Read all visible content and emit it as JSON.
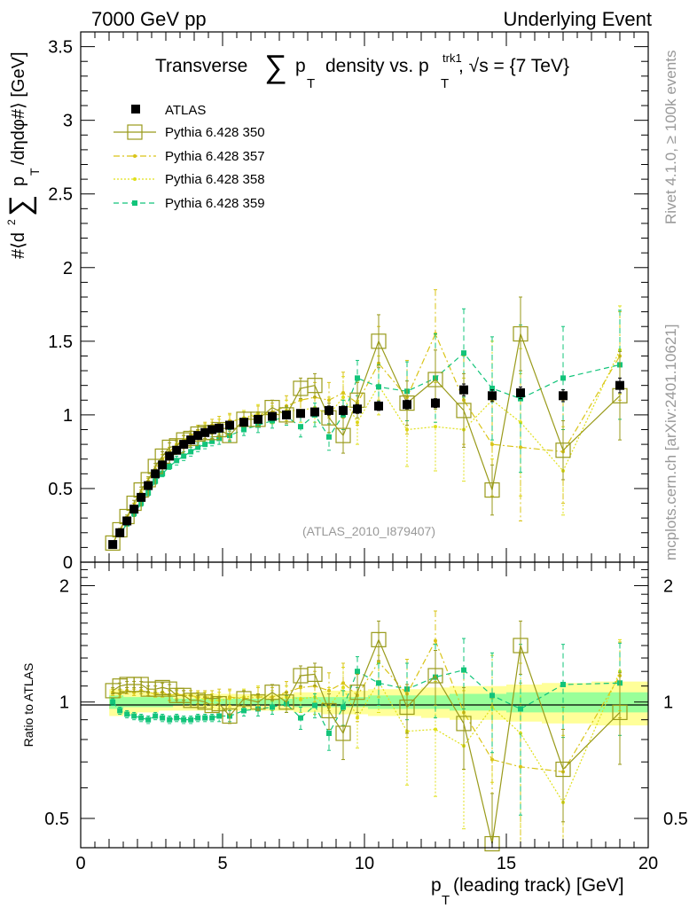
{
  "header": {
    "left": "7000 GeV pp",
    "right": "Underlying Event"
  },
  "side": {
    "rivet": "Rivet 4.1.0, ≥ 100k events",
    "mcplots": "mcplots.cern.ch [arXiv:2401.10621]"
  },
  "colors": {
    "atlas": "#000000",
    "p350": "#999a1a",
    "p357": "#d9c417",
    "p358": "#e0e01a",
    "p359": "#12c47a",
    "band_yellow": "#ffff99",
    "band_green": "#99ff99"
  },
  "chart_data": [
    {
      "type": "scatter",
      "panel": "main",
      "title": "Transverse ∑ p_T density vs. p_T^trk1, √s = {7 TeV}",
      "title_parts": {
        "pre": "Transverse",
        "sum": "∑",
        "p": "p",
        "T": "T",
        "mid": "density vs. p",
        "trk1": "trk1",
        "T2": "T",
        "post": ", √s = {7 TeV}"
      },
      "ylabel_parts": {
        "pre": "#⟨d",
        "two": "2",
        "sum": "∑",
        "p": "p",
        "T": "T",
        "post": "/dηdφ#⟩ [GeV]"
      },
      "watermark": "(ATLAS_2010_I879407)",
      "xlim": [
        0,
        20
      ],
      "ylim": [
        0,
        3.6
      ],
      "yticks": [
        "0",
        "0.5",
        "1",
        "1.5",
        "2",
        "2.5",
        "3",
        "3.5"
      ],
      "legend": [
        "ATLAS",
        "Pythia 6.428 350",
        "Pythia 6.428 357",
        "Pythia 6.428 358",
        "Pythia 6.428 359"
      ],
      "x": [
        1.13,
        1.38,
        1.63,
        1.88,
        2.13,
        2.38,
        2.63,
        2.88,
        3.13,
        3.38,
        3.63,
        3.88,
        4.13,
        4.38,
        4.63,
        4.88,
        5.25,
        5.75,
        6.25,
        6.75,
        7.25,
        7.75,
        8.25,
        8.75,
        9.25,
        9.75,
        10.5,
        11.5,
        12.5,
        13.5,
        14.5,
        15.5,
        17.0,
        19.0
      ],
      "series": [
        {
          "name": "ATLAS",
          "values": [
            0.12,
            0.2,
            0.28,
            0.36,
            0.44,
            0.52,
            0.6,
            0.66,
            0.72,
            0.76,
            0.8,
            0.83,
            0.86,
            0.88,
            0.9,
            0.91,
            0.93,
            0.95,
            0.97,
            0.99,
            1.0,
            1.01,
            1.02,
            1.03,
            1.03,
            1.04,
            1.06,
            1.07,
            1.08,
            1.17,
            1.13,
            1.15,
            1.13,
            1.2
          ],
          "errors": [
            0.01,
            0.01,
            0.01,
            0.01,
            0.01,
            0.01,
            0.01,
            0.01,
            0.01,
            0.01,
            0.01,
            0.01,
            0.01,
            0.01,
            0.01,
            0.01,
            0.02,
            0.02,
            0.02,
            0.02,
            0.02,
            0.02,
            0.02,
            0.03,
            0.03,
            0.03,
            0.03,
            0.03,
            0.03,
            0.04,
            0.04,
            0.04,
            0.04,
            0.05
          ]
        },
        {
          "name": "Pythia 6.428 350",
          "values": [
            0.13,
            0.22,
            0.31,
            0.4,
            0.49,
            0.56,
            0.65,
            0.72,
            0.78,
            0.79,
            0.83,
            0.84,
            0.87,
            0.88,
            0.88,
            0.9,
            0.86,
            0.97,
            0.97,
            1.05,
            1.0,
            1.18,
            1.2,
            0.98,
            0.86,
            1.1,
            1.5,
            1.08,
            1.24,
            1.03,
            0.49,
            1.55,
            0.76,
            1.13
          ],
          "errors": [
            0.01,
            0.01,
            0.01,
            0.02,
            0.02,
            0.02,
            0.02,
            0.03,
            0.03,
            0.03,
            0.03,
            0.03,
            0.03,
            0.04,
            0.04,
            0.04,
            0.03,
            0.05,
            0.05,
            0.05,
            0.06,
            0.07,
            0.08,
            0.1,
            0.12,
            0.12,
            0.18,
            0.15,
            0.2,
            0.25,
            0.17,
            0.25,
            0.2,
            0.3
          ]
        },
        {
          "name": "Pythia 6.428 357",
          "values": [
            0.13,
            0.21,
            0.3,
            0.38,
            0.47,
            0.55,
            0.63,
            0.7,
            0.75,
            0.8,
            0.83,
            0.86,
            0.89,
            0.91,
            0.93,
            0.94,
            0.96,
            0.97,
            1.0,
            1.02,
            1.06,
            1.1,
            1.12,
            1.1,
            1.15,
            1.08,
            1.35,
            1.12,
            1.55,
            1.1,
            0.8,
            0.78,
            0.75,
            1.4
          ],
          "errors": [
            0.01,
            0.01,
            0.01,
            0.02,
            0.02,
            0.02,
            0.02,
            0.03,
            0.03,
            0.03,
            0.03,
            0.03,
            0.04,
            0.04,
            0.04,
            0.05,
            0.05,
            0.05,
            0.06,
            0.06,
            0.07,
            0.08,
            0.1,
            0.12,
            0.14,
            0.15,
            0.25,
            0.25,
            0.3,
            0.3,
            0.35,
            0.5,
            0.35,
            0.3
          ]
        },
        {
          "name": "Pythia 6.428 358",
          "values": [
            0.13,
            0.21,
            0.3,
            0.38,
            0.47,
            0.55,
            0.63,
            0.7,
            0.75,
            0.8,
            0.83,
            0.86,
            0.88,
            0.9,
            0.91,
            0.92,
            0.95,
            0.98,
            1.01,
            1.0,
            1.03,
            1.03,
            1.05,
            1.0,
            1.12,
            0.95,
            1.2,
            0.9,
            0.92,
            0.9,
            1.1,
            0.95,
            0.62,
            1.44
          ],
          "errors": [
            0.01,
            0.01,
            0.01,
            0.02,
            0.02,
            0.02,
            0.02,
            0.03,
            0.03,
            0.03,
            0.03,
            0.03,
            0.04,
            0.04,
            0.04,
            0.05,
            0.05,
            0.05,
            0.06,
            0.06,
            0.07,
            0.08,
            0.1,
            0.12,
            0.14,
            0.15,
            0.2,
            0.25,
            0.3,
            0.35,
            0.4,
            0.5,
            0.3,
            0.3
          ]
        },
        {
          "name": "Pythia 6.428 359",
          "values": [
            0.12,
            0.19,
            0.26,
            0.33,
            0.4,
            0.47,
            0.55,
            0.6,
            0.65,
            0.69,
            0.72,
            0.75,
            0.78,
            0.8,
            0.82,
            0.84,
            0.86,
            0.9,
            0.93,
            0.96,
            0.99,
            0.92,
            1.0,
            0.85,
            1.0,
            1.25,
            1.19,
            1.16,
            1.25,
            1.42,
            1.18,
            1.11,
            1.25,
            1.34
          ],
          "errors": [
            0.01,
            0.01,
            0.01,
            0.02,
            0.02,
            0.02,
            0.02,
            0.02,
            0.02,
            0.03,
            0.03,
            0.03,
            0.03,
            0.03,
            0.03,
            0.04,
            0.04,
            0.04,
            0.05,
            0.05,
            0.06,
            0.07,
            0.08,
            0.09,
            0.1,
            0.12,
            0.15,
            0.2,
            0.3,
            0.3,
            0.35,
            0.5,
            0.35,
            0.37
          ]
        }
      ]
    },
    {
      "type": "scatter",
      "panel": "ratio",
      "ylabel": "Ratio to ATLAS",
      "xlabel_parts": {
        "p": "p",
        "T": "T",
        "post": " (leading track) [GeV]"
      },
      "xlim": [
        0,
        20
      ],
      "ylim": [
        0.42,
        2.3
      ],
      "xticks": [
        "0",
        "5",
        "10",
        "15",
        "20"
      ],
      "yticks": [
        "0.5",
        "1",
        "2"
      ],
      "band_yellow": [
        0.08,
        0.08,
        0.07,
        0.07,
        0.06,
        0.06,
        0.06,
        0.05,
        0.05,
        0.05,
        0.05,
        0.05,
        0.05,
        0.05,
        0.05,
        0.05,
        0.05,
        0.05,
        0.05,
        0.05,
        0.05,
        0.06,
        0.06,
        0.07,
        0.07,
        0.07,
        0.08,
        0.08,
        0.09,
        0.1,
        0.1,
        0.11,
        0.12,
        0.13
      ],
      "band_green": [
        0.04,
        0.04,
        0.03,
        0.03,
        0.03,
        0.03,
        0.03,
        0.03,
        0.03,
        0.02,
        0.02,
        0.02,
        0.02,
        0.02,
        0.02,
        0.02,
        0.02,
        0.02,
        0.02,
        0.02,
        0.02,
        0.03,
        0.03,
        0.03,
        0.03,
        0.03,
        0.04,
        0.04,
        0.04,
        0.05,
        0.05,
        0.06,
        0.06,
        0.06
      ],
      "series": [
        {
          "name": "Pythia 6.428 350",
          "values": [
            1.07,
            1.1,
            1.11,
            1.11,
            1.11,
            1.08,
            1.08,
            1.09,
            1.08,
            1.04,
            1.04,
            1.01,
            1.01,
            1.0,
            0.98,
            0.99,
            0.92,
            1.02,
            1.0,
            1.06,
            1.0,
            1.17,
            1.18,
            0.95,
            0.83,
            1.06,
            1.45,
            0.97,
            1.17,
            0.88,
            0.43,
            1.4,
            0.67,
            0.94
          ],
          "errors": [
            0.02,
            0.02,
            0.02,
            0.02,
            0.02,
            0.02,
            0.02,
            0.03,
            0.03,
            0.03,
            0.03,
            0.03,
            0.03,
            0.03,
            0.04,
            0.04,
            0.04,
            0.05,
            0.05,
            0.05,
            0.06,
            0.07,
            0.08,
            0.1,
            0.12,
            0.12,
            0.17,
            0.14,
            0.19,
            0.21,
            0.15,
            0.22,
            0.18,
            0.25
          ]
        },
        {
          "name": "Pythia 6.428 357",
          "values": [
            1.06,
            1.05,
            1.07,
            1.06,
            1.07,
            1.06,
            1.05,
            1.06,
            1.04,
            1.05,
            1.04,
            1.04,
            1.03,
            1.03,
            1.03,
            1.03,
            1.03,
            1.02,
            1.03,
            1.03,
            1.06,
            1.09,
            1.1,
            1.07,
            1.12,
            1.04,
            1.27,
            1.05,
            1.44,
            0.94,
            0.71,
            0.68,
            0.66,
            1.17
          ],
          "errors": [
            0.02,
            0.02,
            0.02,
            0.02,
            0.02,
            0.02,
            0.02,
            0.03,
            0.03,
            0.03,
            0.03,
            0.03,
            0.04,
            0.04,
            0.04,
            0.05,
            0.05,
            0.05,
            0.06,
            0.06,
            0.07,
            0.08,
            0.1,
            0.12,
            0.14,
            0.15,
            0.24,
            0.24,
            0.28,
            0.27,
            0.31,
            0.44,
            0.31,
            0.26
          ]
        },
        {
          "name": "Pythia 6.428 358",
          "values": [
            1.06,
            1.05,
            1.07,
            1.06,
            1.07,
            1.06,
            1.05,
            1.06,
            1.04,
            1.05,
            1.04,
            1.04,
            1.02,
            1.02,
            1.01,
            1.01,
            1.02,
            1.03,
            1.04,
            1.01,
            1.03,
            1.02,
            1.03,
            0.97,
            1.09,
            0.91,
            1.13,
            0.84,
            0.85,
            0.77,
            0.97,
            0.83,
            0.55,
            1.2
          ],
          "errors": [
            0.02,
            0.02,
            0.02,
            0.02,
            0.02,
            0.02,
            0.02,
            0.03,
            0.03,
            0.03,
            0.03,
            0.03,
            0.04,
            0.04,
            0.04,
            0.05,
            0.05,
            0.05,
            0.06,
            0.06,
            0.07,
            0.08,
            0.1,
            0.12,
            0.14,
            0.15,
            0.19,
            0.23,
            0.28,
            0.3,
            0.35,
            0.43,
            0.27,
            0.25
          ]
        },
        {
          "name": "Pythia 6.428 359",
          "values": [
            1.0,
            0.95,
            0.93,
            0.92,
            0.91,
            0.9,
            0.92,
            0.91,
            0.9,
            0.91,
            0.9,
            0.9,
            0.91,
            0.91,
            0.91,
            0.92,
            0.92,
            0.95,
            0.96,
            0.97,
            0.99,
            0.91,
            0.98,
            0.83,
            0.97,
            1.2,
            1.12,
            1.08,
            1.16,
            1.21,
            1.04,
            0.96,
            1.11,
            1.12
          ],
          "errors": [
            0.02,
            0.02,
            0.02,
            0.02,
            0.02,
            0.02,
            0.02,
            0.02,
            0.02,
            0.02,
            0.02,
            0.02,
            0.02,
            0.02,
            0.02,
            0.03,
            0.03,
            0.03,
            0.04,
            0.04,
            0.05,
            0.06,
            0.07,
            0.08,
            0.1,
            0.11,
            0.14,
            0.18,
            0.25,
            0.25,
            0.3,
            0.45,
            0.3,
            0.3
          ]
        }
      ]
    }
  ]
}
